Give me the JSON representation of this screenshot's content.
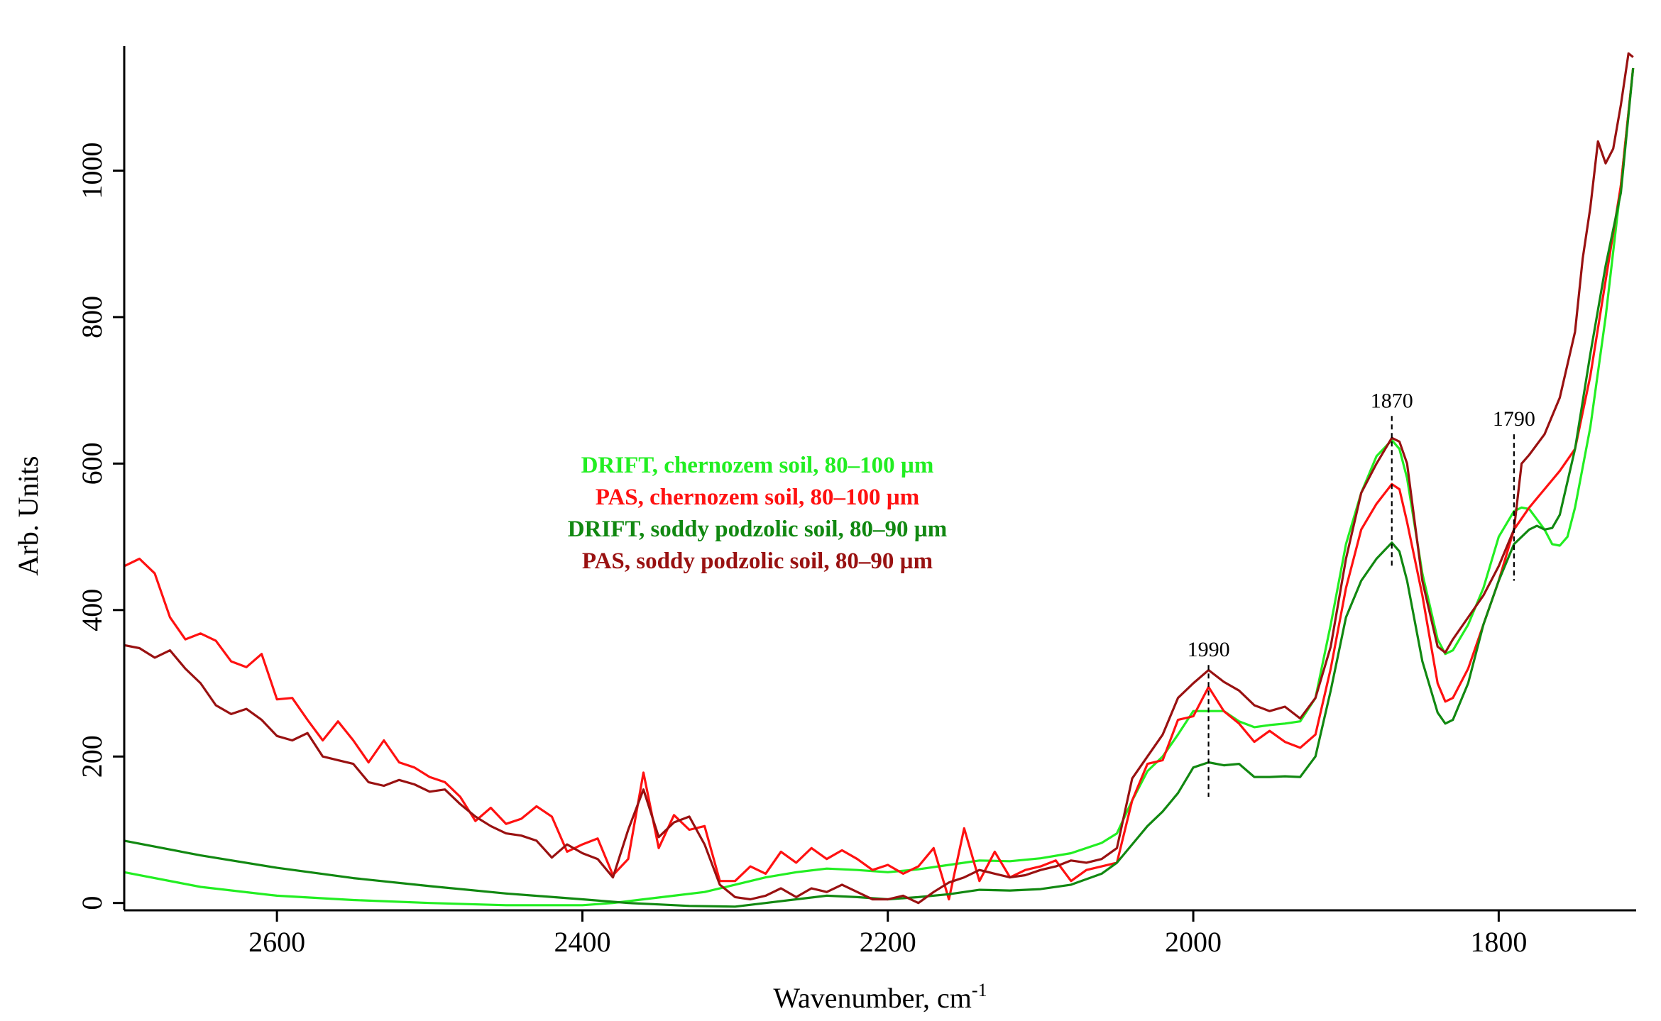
{
  "chart_data": {
    "type": "line",
    "title": "",
    "xlabel": "Wavenumber, cm",
    "xlabel_superscript": "-1",
    "ylabel": "Arb. Units",
    "xlim": [
      2700,
      1710
    ],
    "ylim": [
      -10,
      1170
    ],
    "x_reversed": true,
    "grid": false,
    "legend_placement": "center",
    "x_ticks": [
      2600,
      2400,
      2200,
      2000,
      1800
    ],
    "y_ticks": [
      0,
      200,
      400,
      600,
      800,
      1000
    ],
    "series": [
      {
        "name": "DRIFT, chernozem soil, 80–100 µm",
        "color": "#22ee22",
        "x": [
          2700,
          2650,
          2600,
          2550,
          2500,
          2450,
          2400,
          2380,
          2360,
          2340,
          2320,
          2300,
          2280,
          2260,
          2240,
          2220,
          2200,
          2180,
          2160,
          2140,
          2120,
          2100,
          2080,
          2060,
          2050,
          2040,
          2030,
          2020,
          2010,
          2000,
          1990,
          1980,
          1970,
          1960,
          1950,
          1940,
          1930,
          1920,
          1910,
          1900,
          1890,
          1880,
          1870,
          1865,
          1860,
          1850,
          1840,
          1835,
          1830,
          1820,
          1810,
          1800,
          1790,
          1785,
          1780,
          1770,
          1765,
          1760,
          1755,
          1750,
          1740,
          1730,
          1720,
          1712
        ],
        "y": [
          42,
          22,
          10,
          4,
          0,
          -3,
          -3,
          0,
          5,
          10,
          15,
          25,
          35,
          42,
          47,
          45,
          42,
          46,
          52,
          58,
          57,
          61,
          68,
          82,
          95,
          140,
          180,
          200,
          230,
          262,
          262,
          262,
          248,
          240,
          243,
          245,
          248,
          280,
          380,
          490,
          560,
          610,
          632,
          620,
          580,
          450,
          360,
          340,
          345,
          380,
          430,
          500,
          535,
          540,
          538,
          510,
          490,
          488,
          500,
          540,
          650,
          800,
          980,
          1140
        ]
      },
      {
        "name": "PAS, chernozem soil, 80–100 µm",
        "color": "#ff1111",
        "x": [
          2700,
          2690,
          2680,
          2670,
          2660,
          2650,
          2640,
          2630,
          2620,
          2610,
          2600,
          2590,
          2580,
          2570,
          2560,
          2550,
          2540,
          2530,
          2520,
          2510,
          2500,
          2490,
          2480,
          2470,
          2460,
          2450,
          2440,
          2430,
          2420,
          2410,
          2400,
          2390,
          2380,
          2370,
          2360,
          2350,
          2340,
          2330,
          2320,
          2310,
          2300,
          2290,
          2280,
          2270,
          2260,
          2250,
          2240,
          2230,
          2220,
          2210,
          2200,
          2190,
          2180,
          2170,
          2160,
          2150,
          2140,
          2130,
          2120,
          2110,
          2100,
          2090,
          2080,
          2070,
          2060,
          2050,
          2040,
          2030,
          2020,
          2010,
          2000,
          1990,
          1980,
          1970,
          1960,
          1950,
          1940,
          1930,
          1920,
          1910,
          1900,
          1890,
          1880,
          1870,
          1865,
          1860,
          1850,
          1840,
          1835,
          1830,
          1820,
          1810,
          1800,
          1790,
          1780,
          1770,
          1760,
          1750,
          1740,
          1730,
          1720,
          1712
        ],
        "y": [
          460,
          470,
          450,
          390,
          360,
          368,
          358,
          330,
          322,
          340,
          278,
          280,
          250,
          222,
          248,
          222,
          192,
          222,
          192,
          185,
          172,
          165,
          145,
          112,
          130,
          108,
          115,
          132,
          118,
          70,
          80,
          88,
          38,
          60,
          178,
          75,
          120,
          100,
          105,
          30,
          30,
          50,
          40,
          70,
          55,
          75,
          60,
          72,
          60,
          45,
          52,
          40,
          50,
          75,
          5,
          102,
          30,
          70,
          35,
          45,
          50,
          58,
          30,
          45,
          50,
          55,
          140,
          190,
          195,
          250,
          255,
          295,
          262,
          245,
          220,
          235,
          220,
          212,
          230,
          320,
          430,
          510,
          545,
          572,
          565,
          520,
          420,
          300,
          275,
          280,
          320,
          380,
          440,
          510,
          540,
          565,
          590,
          620,
          720,
          850,
          980,
          1140
        ]
      },
      {
        "name": "DRIFT, soddy podzolic soil, 80–90 µm",
        "color": "#118811",
        "x": [
          2700,
          2650,
          2600,
          2550,
          2500,
          2450,
          2400,
          2370,
          2350,
          2330,
          2300,
          2280,
          2260,
          2240,
          2220,
          2200,
          2180,
          2160,
          2140,
          2120,
          2100,
          2080,
          2060,
          2050,
          2040,
          2030,
          2020,
          2010,
          2000,
          1990,
          1980,
          1970,
          1960,
          1950,
          1940,
          1930,
          1920,
          1910,
          1900,
          1890,
          1880,
          1870,
          1865,
          1860,
          1850,
          1840,
          1835,
          1830,
          1820,
          1810,
          1800,
          1790,
          1780,
          1775,
          1770,
          1765,
          1760,
          1750,
          1740,
          1730,
          1720,
          1712
        ],
        "y": [
          85,
          65,
          48,
          34,
          23,
          13,
          5,
          0,
          -2,
          -4,
          -5,
          0,
          5,
          10,
          8,
          5,
          8,
          12,
          18,
          17,
          19,
          25,
          40,
          55,
          80,
          105,
          125,
          150,
          185,
          192,
          188,
          190,
          172,
          172,
          173,
          172,
          200,
          290,
          390,
          440,
          470,
          492,
          480,
          440,
          330,
          260,
          245,
          250,
          300,
          380,
          440,
          490,
          510,
          515,
          510,
          512,
          530,
          620,
          750,
          870,
          970,
          1140
        ]
      },
      {
        "name": "PAS, soddy podzolic soil, 80–90 µm",
        "color": "#991111",
        "x": [
          2700,
          2690,
          2680,
          2670,
          2660,
          2650,
          2640,
          2630,
          2620,
          2610,
          2600,
          2590,
          2580,
          2570,
          2560,
          2550,
          2540,
          2530,
          2520,
          2510,
          2500,
          2490,
          2480,
          2470,
          2460,
          2450,
          2440,
          2430,
          2420,
          2410,
          2400,
          2390,
          2380,
          2370,
          2360,
          2350,
          2340,
          2330,
          2320,
          2310,
          2300,
          2290,
          2280,
          2270,
          2260,
          2250,
          2240,
          2230,
          2220,
          2210,
          2200,
          2190,
          2180,
          2170,
          2160,
          2150,
          2140,
          2130,
          2120,
          2110,
          2100,
          2090,
          2080,
          2070,
          2060,
          2050,
          2040,
          2030,
          2020,
          2010,
          2000,
          1990,
          1980,
          1970,
          1960,
          1950,
          1940,
          1930,
          1920,
          1910,
          1900,
          1890,
          1880,
          1870,
          1865,
          1860,
          1850,
          1840,
          1835,
          1830,
          1820,
          1810,
          1800,
          1790,
          1785,
          1780,
          1770,
          1760,
          1750,
          1745,
          1740,
          1735,
          1730,
          1725,
          1720,
          1715,
          1712
        ],
        "y": [
          352,
          348,
          335,
          345,
          320,
          300,
          270,
          258,
          265,
          250,
          228,
          222,
          232,
          200,
          195,
          190,
          165,
          160,
          168,
          162,
          152,
          155,
          135,
          118,
          105,
          95,
          92,
          85,
          62,
          80,
          68,
          60,
          35,
          100,
          155,
          90,
          110,
          118,
          80,
          25,
          8,
          5,
          10,
          20,
          8,
          20,
          15,
          25,
          15,
          5,
          5,
          10,
          0,
          15,
          28,
          35,
          45,
          40,
          35,
          38,
          45,
          50,
          58,
          55,
          60,
          75,
          170,
          200,
          230,
          280,
          300,
          318,
          302,
          290,
          270,
          262,
          268,
          252,
          280,
          350,
          470,
          560,
          600,
          635,
          630,
          600,
          440,
          350,
          342,
          360,
          390,
          420,
          460,
          510,
          600,
          612,
          640,
          690,
          780,
          880,
          950,
          1040,
          1010,
          1030,
          1090,
          1160,
          1155
        ]
      }
    ],
    "annotations": [
      {
        "label": "1990",
        "x": 1990,
        "y_top": 325,
        "y_bottom": 145
      },
      {
        "label": "1870",
        "x": 1870,
        "y_top": 665,
        "y_bottom": 460
      },
      {
        "label": "1790",
        "x": 1790,
        "y_top": 640,
        "y_bottom": 440
      }
    ]
  }
}
